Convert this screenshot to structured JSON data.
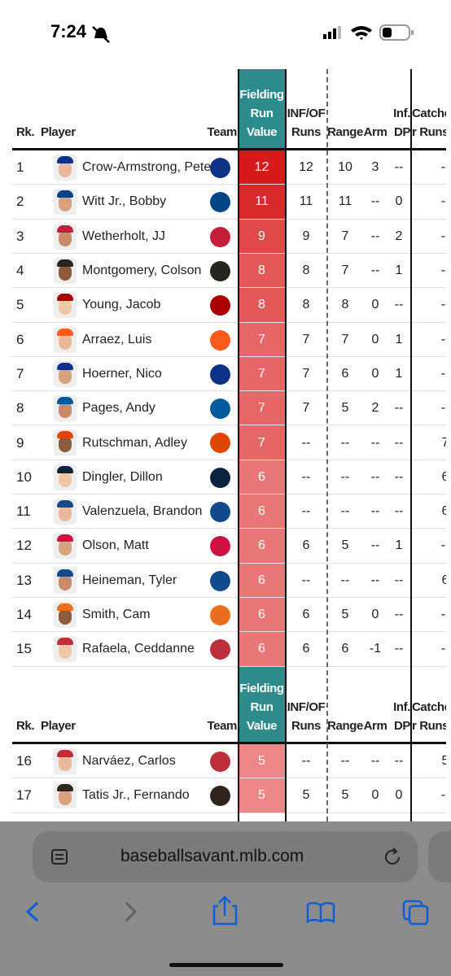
{
  "status_bar": {
    "time": "7:24"
  },
  "table": {
    "columns": {
      "rank": "Rk.",
      "player": "Player",
      "team": "Team",
      "frv": "Fielding Run Value",
      "inf_of": "INF/OF Runs",
      "range": "Range",
      "arm": "Arm",
      "inf_dp": "Inf. DP",
      "catcher": "Catcher Runs"
    },
    "sections": [
      {
        "rows": [
          {
            "rank": 1,
            "player": "Crow-Armstrong, Pete",
            "frv": 12,
            "inf_of": "12",
            "range": "10",
            "arm": "3",
            "inf_dp": "--",
            "catcher": "--"
          },
          {
            "rank": 2,
            "player": "Witt Jr., Bobby",
            "frv": 11,
            "inf_of": "11",
            "range": "11",
            "arm": "--",
            "inf_dp": "0",
            "catcher": "--"
          },
          {
            "rank": 3,
            "player": "Wetherholt, JJ",
            "frv": 9,
            "inf_of": "9",
            "range": "7",
            "arm": "--",
            "inf_dp": "2",
            "catcher": "--"
          },
          {
            "rank": 4,
            "player": "Montgomery, Colson",
            "frv": 8,
            "inf_of": "8",
            "range": "7",
            "arm": "--",
            "inf_dp": "1",
            "catcher": "--"
          },
          {
            "rank": 5,
            "player": "Young, Jacob",
            "frv": 8,
            "inf_of": "8",
            "range": "8",
            "arm": "0",
            "inf_dp": "--",
            "catcher": "--"
          },
          {
            "rank": 6,
            "player": "Arraez, Luis",
            "frv": 7,
            "inf_of": "7",
            "range": "7",
            "arm": "0",
            "inf_dp": "1",
            "catcher": "--"
          },
          {
            "rank": 7,
            "player": "Hoerner, Nico",
            "frv": 7,
            "inf_of": "7",
            "range": "6",
            "arm": "0",
            "inf_dp": "1",
            "catcher": "--"
          },
          {
            "rank": 8,
            "player": "Pages, Andy",
            "frv": 7,
            "inf_of": "7",
            "range": "5",
            "arm": "2",
            "inf_dp": "--",
            "catcher": "--"
          },
          {
            "rank": 9,
            "player": "Rutschman, Adley",
            "frv": 7,
            "inf_of": "--",
            "range": "--",
            "arm": "--",
            "inf_dp": "--",
            "catcher": "7"
          },
          {
            "rank": 10,
            "player": "Dingler, Dillon",
            "frv": 6,
            "inf_of": "--",
            "range": "--",
            "arm": "--",
            "inf_dp": "--",
            "catcher": "6"
          },
          {
            "rank": 11,
            "player": "Valenzuela, Brandon",
            "frv": 6,
            "inf_of": "--",
            "range": "--",
            "arm": "--",
            "inf_dp": "--",
            "catcher": "6"
          },
          {
            "rank": 12,
            "player": "Olson, Matt",
            "frv": 6,
            "inf_of": "6",
            "range": "5",
            "arm": "--",
            "inf_dp": "1",
            "catcher": "--"
          },
          {
            "rank": 13,
            "player": "Heineman, Tyler",
            "frv": 6,
            "inf_of": "--",
            "range": "--",
            "arm": "--",
            "inf_dp": "--",
            "catcher": "6"
          },
          {
            "rank": 14,
            "player": "Smith, Cam",
            "frv": 6,
            "inf_of": "6",
            "range": "5",
            "arm": "0",
            "inf_dp": "--",
            "catcher": "--"
          },
          {
            "rank": 15,
            "player": "Rafaela, Ceddanne",
            "frv": 6,
            "inf_of": "6",
            "range": "6",
            "arm": "-1",
            "inf_dp": "--",
            "catcher": "--"
          }
        ]
      },
      {
        "rows": [
          {
            "rank": 16,
            "player": "Narváez, Carlos",
            "frv": 5,
            "inf_of": "--",
            "range": "--",
            "arm": "--",
            "inf_dp": "--",
            "catcher": "5"
          },
          {
            "rank": 17,
            "player": "Tatis Jr., Fernando",
            "frv": 5,
            "inf_of": "5",
            "range": "5",
            "arm": "0",
            "inf_dp": "0",
            "catcher": "--"
          }
        ]
      }
    ]
  },
  "browser": {
    "url": "baseballsavant.mlb.com"
  }
}
